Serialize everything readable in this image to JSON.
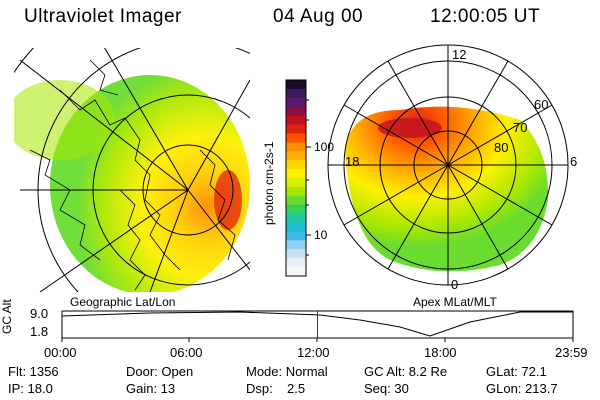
{
  "header": {
    "title": "Ultraviolet Imager",
    "date": "04 Aug 00",
    "time": "12:00:05 UT"
  },
  "left_map": {
    "caption": "Geographic Lat/Lon"
  },
  "right_map": {
    "caption": "Apex MLat/MLT",
    "mlt_labels": [
      "12",
      "18",
      "6",
      "0"
    ],
    "mlat_labels": [
      "60",
      "70",
      "80"
    ]
  },
  "colorbar": {
    "title": "photon cm-2s-1",
    "labels": [
      "100",
      "10"
    ],
    "colors": [
      "#1a0a2a",
      "#3a1a5a",
      "#5a1a70",
      "#8a1040",
      "#c01020",
      "#e02010",
      "#ff5000",
      "#ff8c00",
      "#ffb000",
      "#ffd500",
      "#fff000",
      "#d8f000",
      "#a8e800",
      "#6adc30",
      "#38d060",
      "#20c8a0",
      "#18c0d0",
      "#40b8e8",
      "#90d0f0",
      "#c8e4f4",
      "#e8f0f8",
      "#f8f8f8"
    ]
  },
  "altitude_plot": {
    "ylabel": "GC Alt",
    "y_ticks": [
      "9.0",
      "1.8"
    ],
    "x_ticks": [
      "00:00",
      "06:00",
      "12:00",
      "18:00",
      "23:59"
    ],
    "current_time_marker_hours": 12.0
  },
  "info": {
    "flt": "Flt: 1356",
    "ip": "IP: 18.0",
    "door": "Door: Open",
    "gain": "Gain: 13",
    "mode": "Mode: Normal",
    "dsp_label": "Dsp:",
    "dsp_value": "2.5",
    "gc_alt": "GC Alt: 8.2 Re",
    "seq": "Seq: 30",
    "glat": "GLat: 72.1",
    "glon": "GLon: 213.7"
  }
}
